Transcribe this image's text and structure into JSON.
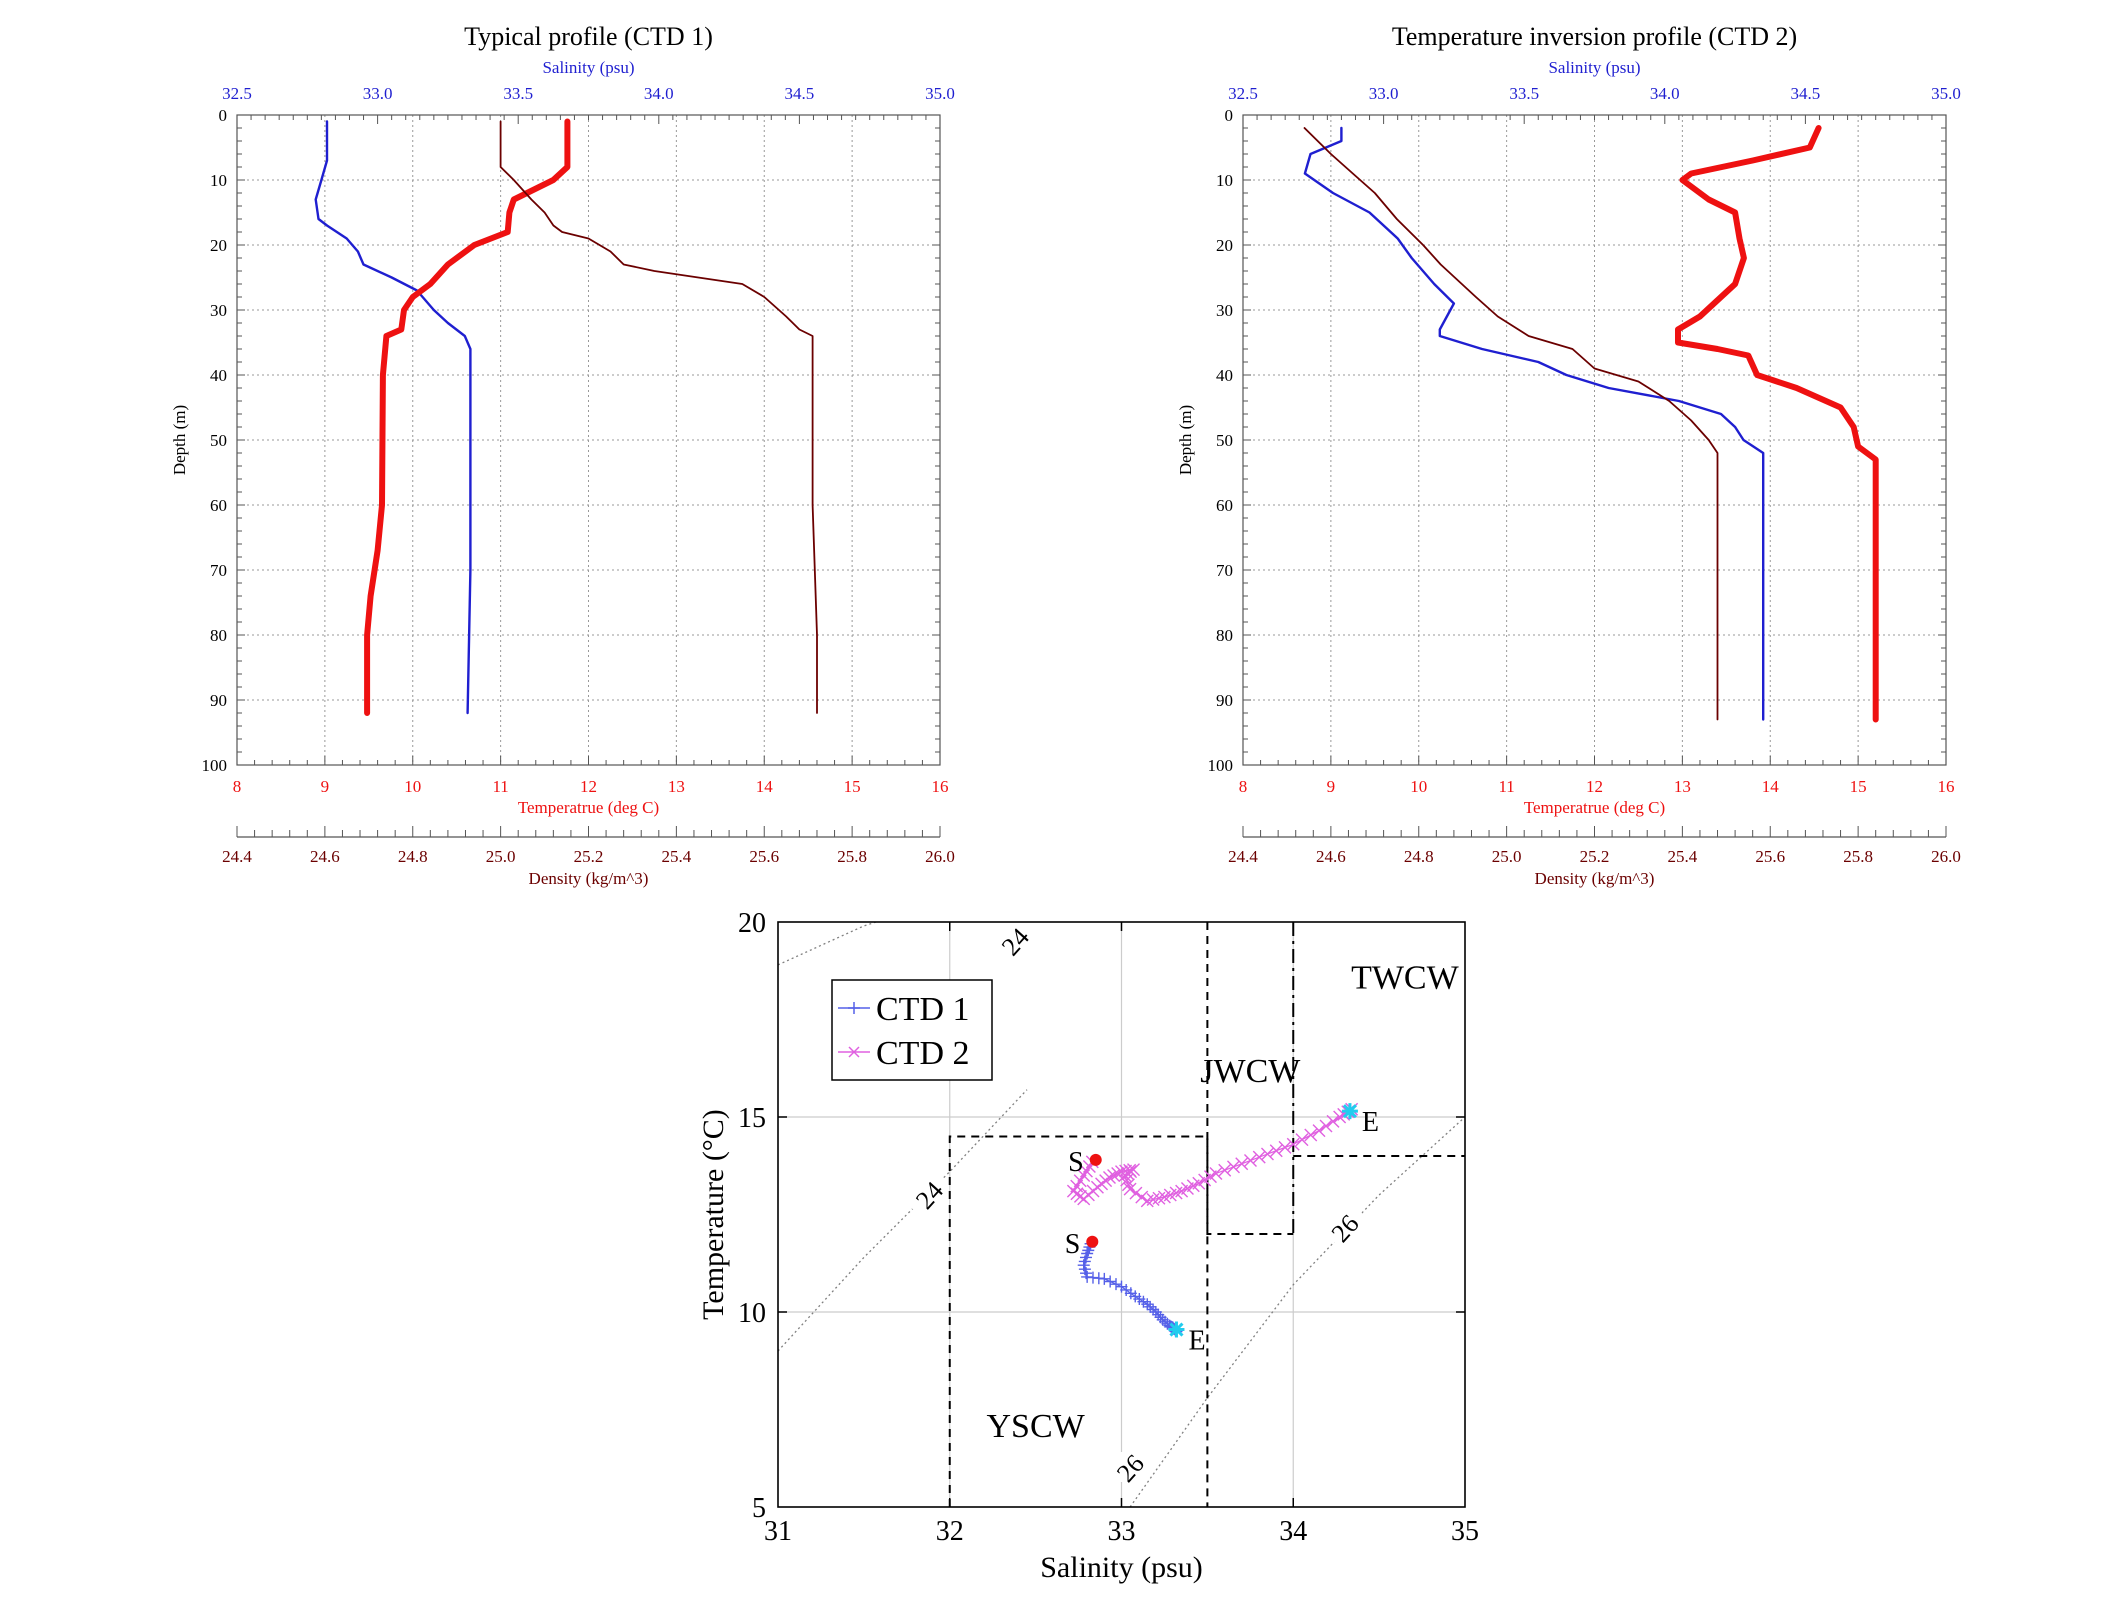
{
  "colors": {
    "salinity": "#1f1fd0",
    "temperature": "#ee1111",
    "density": "#6b0000",
    "ctd1_ts": "#5560e8",
    "ctd2_ts": "#e060e0",
    "start_marker": "#ee1111",
    "end_marker": "#22ccee",
    "grid": "#999999",
    "isopycnal": "#808080"
  },
  "chart_data": [
    {
      "id": "ctd1_profile",
      "type": "line",
      "title": "Typical profile (CTD 1)",
      "ylabel": "Depth (m)",
      "ylim": [
        0,
        100
      ],
      "yticks": [
        0,
        10,
        20,
        30,
        40,
        50,
        60,
        70,
        80,
        90,
        100
      ],
      "salinity_axis": {
        "label": "Salinity (psu)",
        "range": [
          32.5,
          35.0
        ],
        "ticks": [
          "32.5",
          "33.0",
          "33.5",
          "34.0",
          "34.5",
          "35.0"
        ]
      },
      "temperature_axis": {
        "label": "Temperatrue (deg C)",
        "range": [
          8,
          16
        ],
        "ticks": [
          "8",
          "9",
          "10",
          "11",
          "12",
          "13",
          "14",
          "15",
          "16"
        ]
      },
      "density_axis": {
        "label": "Density (kg/m^3)",
        "range": [
          24.4,
          26.0
        ],
        "ticks": [
          "24.4",
          "24.6",
          "24.8",
          "25.0",
          "25.2",
          "25.4",
          "25.6",
          "25.8",
          "26.0"
        ]
      },
      "series": [
        {
          "name": "Salinity",
          "axis": "salinity",
          "points": [
            [
              32.82,
              1
            ],
            [
              32.82,
              7
            ],
            [
              32.8,
              10
            ],
            [
              32.78,
              13
            ],
            [
              32.79,
              16
            ],
            [
              32.82,
              17
            ],
            [
              32.89,
              19
            ],
            [
              32.93,
              21
            ],
            [
              32.95,
              23
            ],
            [
              33.05,
              25
            ],
            [
              33.14,
              27
            ],
            [
              33.2,
              30
            ],
            [
              33.25,
              32
            ],
            [
              33.31,
              34
            ],
            [
              33.33,
              36
            ],
            [
              33.33,
              50
            ],
            [
              33.33,
              70
            ],
            [
              33.32,
              92
            ]
          ]
        },
        {
          "name": "Temperature",
          "axis": "temperature",
          "points": [
            [
              11.76,
              1
            ],
            [
              11.76,
              8
            ],
            [
              11.6,
              10
            ],
            [
              11.3,
              12
            ],
            [
              11.15,
              13
            ],
            [
              11.1,
              15
            ],
            [
              11.08,
              18
            ],
            [
              10.7,
              20
            ],
            [
              10.4,
              23
            ],
            [
              10.2,
              26
            ],
            [
              10.0,
              28
            ],
            [
              9.9,
              30
            ],
            [
              9.87,
              33
            ],
            [
              9.7,
              34
            ],
            [
              9.66,
              40
            ],
            [
              9.65,
              60
            ],
            [
              9.6,
              67
            ],
            [
              9.52,
              74
            ],
            [
              9.48,
              80
            ],
            [
              9.48,
              92
            ]
          ]
        },
        {
          "name": "Density",
          "axis": "density",
          "points": [
            [
              25.0,
              1
            ],
            [
              25.0,
              8
            ],
            [
              25.03,
              10
            ],
            [
              25.07,
              13
            ],
            [
              25.1,
              15
            ],
            [
              25.12,
              17
            ],
            [
              25.14,
              18
            ],
            [
              25.2,
              19
            ],
            [
              25.25,
              21
            ],
            [
              25.28,
              23
            ],
            [
              25.35,
              24
            ],
            [
              25.45,
              25
            ],
            [
              25.55,
              26
            ],
            [
              25.6,
              28
            ],
            [
              25.65,
              31
            ],
            [
              25.68,
              33
            ],
            [
              25.71,
              34
            ],
            [
              25.71,
              60
            ],
            [
              25.72,
              80
            ],
            [
              25.72,
              92
            ]
          ]
        }
      ]
    },
    {
      "id": "ctd2_profile",
      "type": "line",
      "title": "Temperature inversion profile (CTD 2)",
      "ylabel": "Depth (m)",
      "ylim": [
        0,
        100
      ],
      "yticks": [
        0,
        10,
        20,
        30,
        40,
        50,
        60,
        70,
        80,
        90,
        100
      ],
      "salinity_axis": {
        "label": "Salinity (psu)",
        "range": [
          32.5,
          35.0
        ],
        "ticks": [
          "32.5",
          "33.0",
          "33.5",
          "34.0",
          "34.5",
          "35.0"
        ]
      },
      "temperature_axis": {
        "label": "Temperatrue (deg C)",
        "range": [
          8,
          16
        ],
        "ticks": [
          "8",
          "9",
          "10",
          "11",
          "12",
          "13",
          "14",
          "15",
          "16"
        ]
      },
      "density_axis": {
        "label": "Density (kg/m^3)",
        "range": [
          24.4,
          26.0
        ],
        "ticks": [
          "24.4",
          "24.6",
          "24.8",
          "25.0",
          "25.2",
          "25.4",
          "25.6",
          "25.8",
          "26.0"
        ]
      },
      "series": [
        {
          "name": "Salinity",
          "axis": "salinity",
          "points": [
            [
              32.85,
              2
            ],
            [
              32.85,
              4
            ],
            [
              32.74,
              6
            ],
            [
              32.72,
              9
            ],
            [
              32.82,
              12
            ],
            [
              32.95,
              15
            ],
            [
              33.05,
              19
            ],
            [
              33.1,
              22
            ],
            [
              33.18,
              26
            ],
            [
              33.25,
              29
            ],
            [
              33.2,
              33
            ],
            [
              33.2,
              34
            ],
            [
              33.35,
              36
            ],
            [
              33.55,
              38
            ],
            [
              33.65,
              40
            ],
            [
              33.8,
              42
            ],
            [
              34.05,
              44
            ],
            [
              34.2,
              46
            ],
            [
              34.25,
              48
            ],
            [
              34.28,
              50
            ],
            [
              34.35,
              52
            ],
            [
              34.35,
              70
            ],
            [
              34.35,
              93
            ]
          ]
        },
        {
          "name": "Temperature",
          "axis": "temperature",
          "points": [
            [
              14.55,
              2
            ],
            [
              14.45,
              5
            ],
            [
              13.8,
              7
            ],
            [
              13.1,
              9
            ],
            [
              13.0,
              10
            ],
            [
              13.3,
              13
            ],
            [
              13.6,
              15
            ],
            [
              13.65,
              19
            ],
            [
              13.7,
              22
            ],
            [
              13.6,
              26
            ],
            [
              13.2,
              31
            ],
            [
              12.95,
              33
            ],
            [
              12.95,
              35
            ],
            [
              13.4,
              36
            ],
            [
              13.75,
              37
            ],
            [
              13.85,
              40
            ],
            [
              14.3,
              42
            ],
            [
              14.8,
              45
            ],
            [
              14.95,
              48
            ],
            [
              15.0,
              51
            ],
            [
              15.2,
              53
            ],
            [
              15.2,
              70
            ],
            [
              15.2,
              93
            ]
          ]
        },
        {
          "name": "Density",
          "axis": "density",
          "points": [
            [
              24.54,
              2
            ],
            [
              24.6,
              6
            ],
            [
              24.65,
              9
            ],
            [
              24.7,
              12
            ],
            [
              24.75,
              16
            ],
            [
              24.81,
              20
            ],
            [
              24.85,
              23
            ],
            [
              24.93,
              28
            ],
            [
              24.98,
              31
            ],
            [
              25.05,
              34
            ],
            [
              25.15,
              36
            ],
            [
              25.2,
              39
            ],
            [
              25.3,
              41
            ],
            [
              25.37,
              44
            ],
            [
              25.42,
              47
            ],
            [
              25.46,
              50
            ],
            [
              25.48,
              52
            ],
            [
              25.48,
              70
            ],
            [
              25.48,
              93
            ]
          ]
        }
      ]
    },
    {
      "id": "ts_diagram",
      "type": "scatter",
      "xlabel": "Salinity (psu)",
      "ylabel": "Temperature (°C)",
      "xlim": [
        31,
        35
      ],
      "ylim": [
        5,
        20
      ],
      "xticks": [
        "31",
        "32",
        "33",
        "34",
        "35"
      ],
      "yticks": [
        "5",
        "10",
        "15",
        "20"
      ],
      "legend": {
        "placement": "top-left",
        "entries": [
          "CTD 1",
          "CTD 2"
        ]
      },
      "water_masses": [
        {
          "label": "YSCW",
          "salinity_range": [
            32.0,
            33.5
          ],
          "temperature_range": [
            5,
            14.5
          ],
          "label_at": [
            32.5,
            6.8
          ]
        },
        {
          "label": "JWCW",
          "salinity_range": [
            33.5,
            34.0
          ],
          "temperature_range": [
            12,
            20
          ],
          "label_at": [
            33.75,
            15.9
          ]
        },
        {
          "label": "TWCW",
          "salinity_range": [
            34.0,
            35.0
          ],
          "temperature_range": [
            14,
            20
          ],
          "label_at": [
            34.65,
            18.3
          ]
        }
      ],
      "isopycnals": [
        {
          "sigma_t": 24,
          "points": [
            [
              31.0,
              18.9
            ],
            [
              31.5,
              19.9
            ],
            [
              32.0,
              20.6
            ]
          ],
          "label": "24",
          "label_at": [
            32.38,
            19.5
          ]
        },
        {
          "sigma_t": 24,
          "points": [
            [
              31.0,
              9.0
            ],
            [
              31.5,
              11.4
            ],
            [
              32.0,
              13.6
            ],
            [
              32.45,
              15.7
            ]
          ],
          "label": "24",
          "label_at": [
            31.88,
            13.0
          ]
        },
        {
          "sigma_t": 26,
          "points": [
            [
              33.05,
              5.0
            ],
            [
              33.5,
              7.8
            ],
            [
              34.0,
              10.7
            ],
            [
              34.5,
              13.0
            ],
            [
              35.0,
              15.0
            ]
          ],
          "label": "26",
          "label_at": [
            34.3,
            12.15
          ]
        },
        {
          "sigma_t": 26,
          "points": [],
          "label": "26",
          "label_at": [
            33.05,
            6.0
          ]
        }
      ],
      "series": [
        {
          "name": "CTD 1",
          "marker": "+",
          "points": [
            [
              32.82,
              11.75
            ],
            [
              32.8,
              11.5
            ],
            [
              32.78,
              11.2
            ],
            [
              32.8,
              10.9
            ],
            [
              32.9,
              10.85
            ],
            [
              33.0,
              10.65
            ],
            [
              33.08,
              10.4
            ],
            [
              33.15,
              10.2
            ],
            [
              33.2,
              10.0
            ],
            [
              33.24,
              9.8
            ],
            [
              33.28,
              9.65
            ],
            [
              33.3,
              9.6
            ],
            [
              33.32,
              9.5
            ]
          ]
        },
        {
          "name": "CTD 2",
          "marker": "x",
          "points": [
            [
              32.83,
              13.85
            ],
            [
              32.78,
              13.5
            ],
            [
              32.72,
              13.1
            ],
            [
              32.78,
              12.9
            ],
            [
              32.86,
              13.2
            ],
            [
              32.93,
              13.45
            ],
            [
              33.0,
              13.6
            ],
            [
              33.07,
              13.65
            ],
            [
              33.02,
              13.5
            ],
            [
              33.05,
              13.15
            ],
            [
              33.15,
              12.85
            ],
            [
              33.25,
              12.95
            ],
            [
              33.35,
              13.1
            ],
            [
              33.45,
              13.3
            ],
            [
              33.55,
              13.55
            ],
            [
              33.7,
              13.8
            ],
            [
              33.85,
              14.05
            ],
            [
              34.0,
              14.3
            ],
            [
              34.15,
              14.65
            ],
            [
              34.27,
              15.0
            ],
            [
              34.34,
              15.2
            ]
          ]
        }
      ],
      "point_labels": [
        {
          "text": "S",
          "at": [
            32.85,
            13.9
          ],
          "marker": "start"
        },
        {
          "text": "S",
          "at": [
            32.83,
            11.8
          ],
          "marker": "start"
        },
        {
          "text": "E",
          "at": [
            34.33,
            15.15
          ],
          "marker": "end"
        },
        {
          "text": "E",
          "at": [
            33.32,
            9.55
          ],
          "marker": "end"
        }
      ]
    }
  ]
}
